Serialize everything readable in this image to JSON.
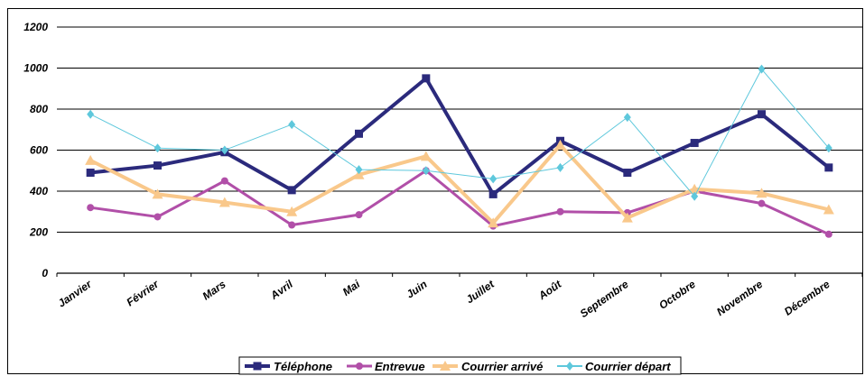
{
  "chart_data": {
    "type": "line",
    "categories": [
      "Janvier",
      "Février",
      "Mars",
      "Avril",
      "Mai",
      "Juin",
      "Juillet",
      "Août",
      "Septembre",
      "Octobre",
      "Novembre",
      "Décembre"
    ],
    "ylim": [
      0,
      1200
    ],
    "yticks": [
      0,
      200,
      400,
      600,
      800,
      1000,
      1200
    ],
    "grid": true,
    "legend_position": "bottom",
    "series": [
      {
        "name": "Téléphone",
        "color": "#2b2a7c",
        "marker": "square",
        "values": [
          490,
          525,
          590,
          405,
          680,
          950,
          385,
          645,
          490,
          635,
          775,
          515
        ]
      },
      {
        "name": "Entrevue",
        "color": "#b14fa8",
        "marker": "circle",
        "values": [
          320,
          275,
          450,
          235,
          285,
          500,
          230,
          300,
          295,
          400,
          340,
          190
        ]
      },
      {
        "name": "Courrier arrivé",
        "color": "#f9c88b",
        "marker": "triangle",
        "values": [
          550,
          385,
          345,
          300,
          480,
          570,
          245,
          625,
          270,
          410,
          390,
          310
        ]
      },
      {
        "name": "Courrier départ",
        "color": "#5ec8dc",
        "marker": "diamond",
        "values": [
          775,
          610,
          600,
          725,
          505,
          500,
          460,
          515,
          760,
          375,
          995,
          610
        ]
      }
    ]
  }
}
